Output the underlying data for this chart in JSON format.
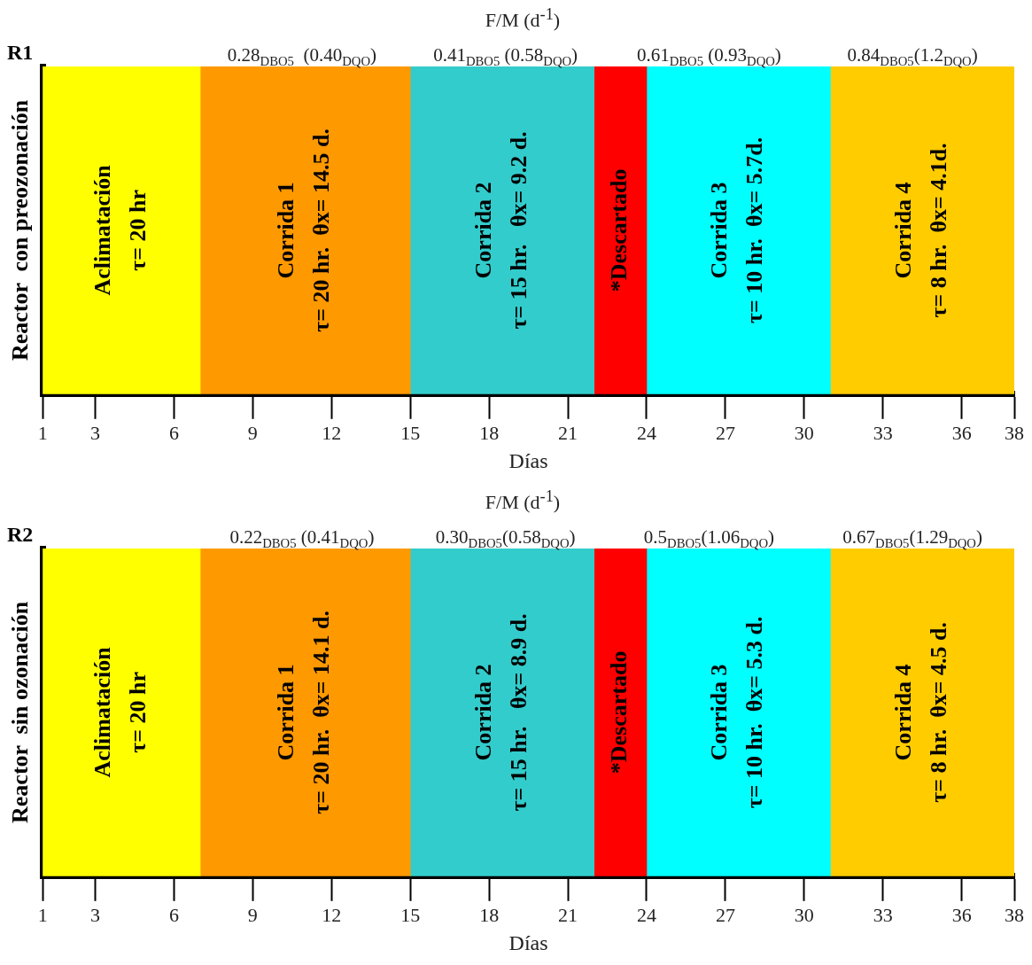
{
  "chart_data": [
    {
      "type": "bar",
      "orientation": "horizontal",
      "title": "F/M (d$^{-1}$)",
      "xlabel": "Días",
      "ylabel": "Reactor  con preozonación",
      "tick_labels": "x",
      "categories": [
        null
      ],
      "xlim": [
        1,
        38
      ],
      "xticks": [
        1,
        3,
        6,
        9,
        12,
        15,
        18,
        21,
        24,
        27,
        30,
        33,
        36,
        38
      ],
      "series": [
        {
          "name": "Aclimatación\nτ= 20 hr",
          "color": "#ffff00",
          "base": [
            1
          ],
          "values": [
            6
          ]
        },
        {
          "name": "Corrida 1\nτ= 20 hr.  θx= 14.5 d.",
          "color": "#ff9900",
          "base": [
            7
          ],
          "values": [
            8
          ]
        },
        {
          "name": "Corrida 2\nτ= 15 hr.   θx= 9.2 d.",
          "color": "#33cccc",
          "base": [
            15
          ],
          "values": [
            7
          ]
        },
        {
          "name": "*Descartado",
          "color": "#ff0000",
          "base": [
            22
          ],
          "values": [
            2
          ]
        },
        {
          "name": "Corrida 3\nτ= 10 hr.  θx= 5.7d.",
          "color": "#00ffff",
          "base": [
            24
          ],
          "values": [
            7
          ]
        },
        {
          "name": "Corrida 4\nτ= 8 hr.  θx= 4.1d.",
          "color": "#ffcc00",
          "base": [
            31
          ],
          "values": [
            7
          ]
        }
      ],
      "annotations": [
        "R1",
        "0.28$_{DBO5}$  (0.40$_{DQO}$)",
        "0.41$_{DBO5}$ (0.58$_{DQO}$)",
        "0.61$_{DBO5}$ (0.93$_{DQO}$)",
        "0.84$_{DBO5}$(1.2$_{DQO}$)"
      ]
    },
    {
      "type": "bar",
      "orientation": "horizontal",
      "title": "F/M (d$^{-1}$)",
      "xlabel": "Días",
      "ylabel": "Reactor  sin ozonación",
      "tick_labels": "x",
      "categories": [
        null
      ],
      "xlim": [
        1,
        38
      ],
      "xticks": [
        1,
        3,
        6,
        9,
        12,
        15,
        18,
        21,
        24,
        27,
        30,
        33,
        36,
        38
      ],
      "series": [
        {
          "name": "Aclimatación\nτ= 20 hr",
          "color": "#ffff00",
          "base": [
            1
          ],
          "values": [
            6
          ]
        },
        {
          "name": "Corrida 1\nτ= 20 hr.  θx= 14.1 d.",
          "color": "#ff9900",
          "base": [
            7
          ],
          "values": [
            8
          ]
        },
        {
          "name": "Corrida 2\nτ= 15 hr.   θx= 8.9 d.",
          "color": "#33cccc",
          "base": [
            15
          ],
          "values": [
            7
          ]
        },
        {
          "name": "*Descartado",
          "color": "#ff0000",
          "base": [
            22
          ],
          "values": [
            2
          ]
        },
        {
          "name": "Corrida 3\nτ= 10 hr.  θx= 5.3 d.",
          "color": "#00ffff",
          "base": [
            24
          ],
          "values": [
            7
          ]
        },
        {
          "name": "Corrida 4\nτ= 8 hr.  θx= 4.5 d.",
          "color": "#ffcc00",
          "base": [
            31
          ],
          "values": [
            7
          ]
        }
      ],
      "annotations": [
        "R2",
        "0.22$_{DBO5}$ (0.41$_{DQO}$)",
        "0.30$_{DBO5}$(0.58$_{DQO}$)",
        "0.5$_{DBO5}$(1.06$_{DQO}$)",
        "0.67$_{DBO5}$(1.29$_{DQO}$)"
      ]
    }
  ]
}
